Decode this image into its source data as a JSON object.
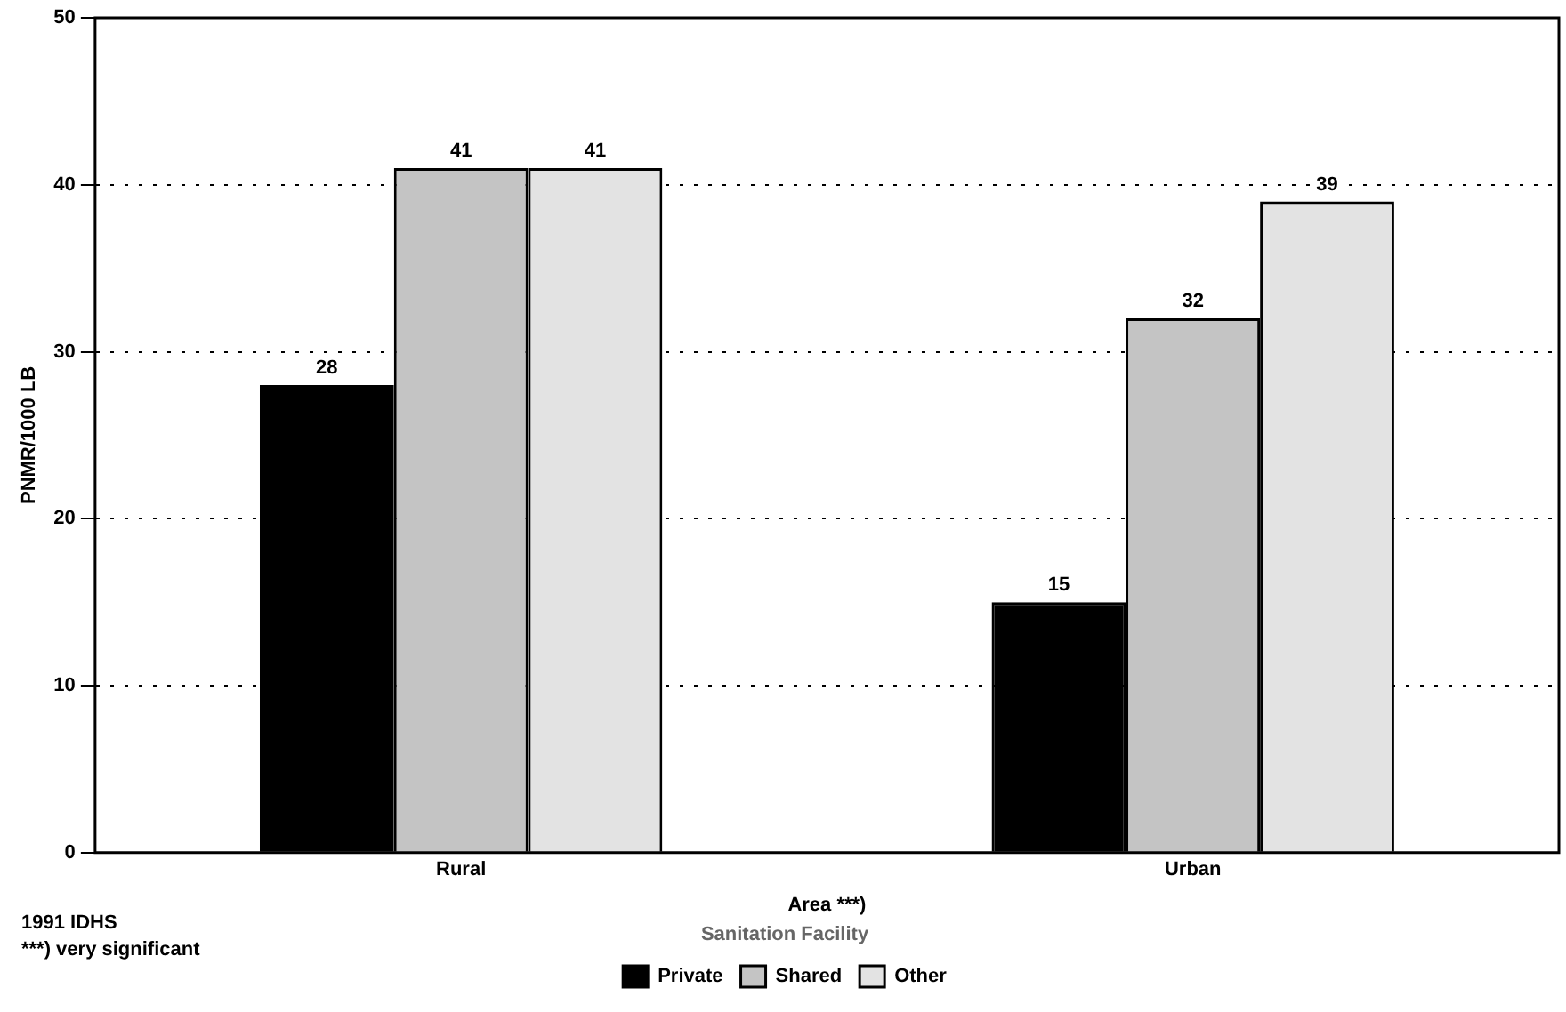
{
  "chart_data": {
    "type": "bar",
    "xlabel": "Area ***)",
    "ylabel": "PNMR/1000 LB",
    "legend_title": "Sanitation Facility",
    "categories": [
      "Rural",
      "Urban"
    ],
    "series": [
      {
        "name": "Private",
        "color": "#000000",
        "values": [
          28,
          15
        ]
      },
      {
        "name": "Shared",
        "color": "#c4c4c4",
        "values": [
          41,
          32
        ]
      },
      {
        "name": "Other",
        "color": "#e3e3e3",
        "values": [
          41,
          39
        ]
      }
    ],
    "ylim": [
      0,
      50
    ],
    "yticks": [
      0,
      10,
      20,
      30,
      40,
      50
    ],
    "grid": "y",
    "legend": "bottom",
    "data_labels": true,
    "annotations": [
      "1991 IDHS",
      "***) very significant"
    ]
  }
}
